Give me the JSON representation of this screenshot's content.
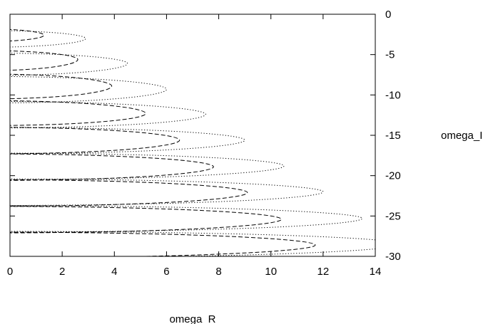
{
  "chart_data": {
    "type": "line",
    "title": "",
    "xlabel": "omega_R",
    "ylabel": "omega_I",
    "xlim": [
      0,
      14
    ],
    "ylim": [
      -30,
      0
    ],
    "y_axis_side": "right",
    "grid": false,
    "legend": "none",
    "x_ticks": [
      "0",
      "2",
      "4",
      "6",
      "8",
      "10",
      "12",
      "14"
    ],
    "y_ticks": [
      "0",
      "-5",
      "-10",
      "-15",
      "-20",
      "-25",
      "-30"
    ],
    "series": [
      {
        "style": "dashed",
        "curves": [
          {
            "tip_x": 1.3,
            "center_y": -2.6,
            "upper_y": -1.8,
            "lower_y": -3.4,
            "far_x": 0
          },
          {
            "tip_x": 2.6,
            "center_y": -5.6,
            "upper_y": -4.5,
            "lower_y": -7.0,
            "far_x": 0
          },
          {
            "tip_x": 3.9,
            "center_y": -8.9,
            "upper_y": -7.4,
            "lower_y": -10.5,
            "far_x": 0
          },
          {
            "tip_x": 5.2,
            "center_y": -12.3,
            "upper_y": -10.7,
            "lower_y": -13.8,
            "far_x": 0
          },
          {
            "tip_x": 6.5,
            "center_y": -15.6,
            "upper_y": -14.0,
            "lower_y": -17.3,
            "far_x": 0
          },
          {
            "tip_x": 7.8,
            "center_y": -18.9,
            "upper_y": -17.3,
            "lower_y": -20.6,
            "far_x": 0
          },
          {
            "tip_x": 9.1,
            "center_y": -22.1,
            "upper_y": -20.5,
            "lower_y": -23.8,
            "far_x": 0
          },
          {
            "tip_x": 10.4,
            "center_y": -25.4,
            "upper_y": -23.8,
            "lower_y": -27.1,
            "far_x": 0
          },
          {
            "tip_x": 11.7,
            "center_y": -28.6,
            "upper_y": -27.0,
            "lower_y": -30.2,
            "far_x": 0
          }
        ]
      },
      {
        "style": "dotted",
        "curves": [
          {
            "tip_x": 2.9,
            "center_y": -3.0,
            "upper_y": -2.0,
            "lower_y": -4.1,
            "far_x": 0
          },
          {
            "tip_x": 4.5,
            "center_y": -6.1,
            "upper_y": -4.8,
            "lower_y": -7.6,
            "far_x": 0
          },
          {
            "tip_x": 6.0,
            "center_y": -9.3,
            "upper_y": -7.7,
            "lower_y": -11.0,
            "far_x": 0
          },
          {
            "tip_x": 7.5,
            "center_y": -12.4,
            "upper_y": -10.8,
            "lower_y": -14.1,
            "far_x": 0
          },
          {
            "tip_x": 9.0,
            "center_y": -15.6,
            "upper_y": -14.0,
            "lower_y": -17.3,
            "far_x": 0
          },
          {
            "tip_x": 10.5,
            "center_y": -18.8,
            "upper_y": -17.2,
            "lower_y": -20.5,
            "far_x": 0
          },
          {
            "tip_x": 12.0,
            "center_y": -22.0,
            "upper_y": -20.4,
            "lower_y": -23.7,
            "far_x": 0
          },
          {
            "tip_x": 13.5,
            "center_y": -25.3,
            "upper_y": -23.7,
            "lower_y": -27.0,
            "far_x": 0
          },
          {
            "tip_x": 15.0,
            "center_y": -28.5,
            "upper_y": -26.9,
            "lower_y": -30.2,
            "far_x": 0
          }
        ]
      }
    ]
  }
}
